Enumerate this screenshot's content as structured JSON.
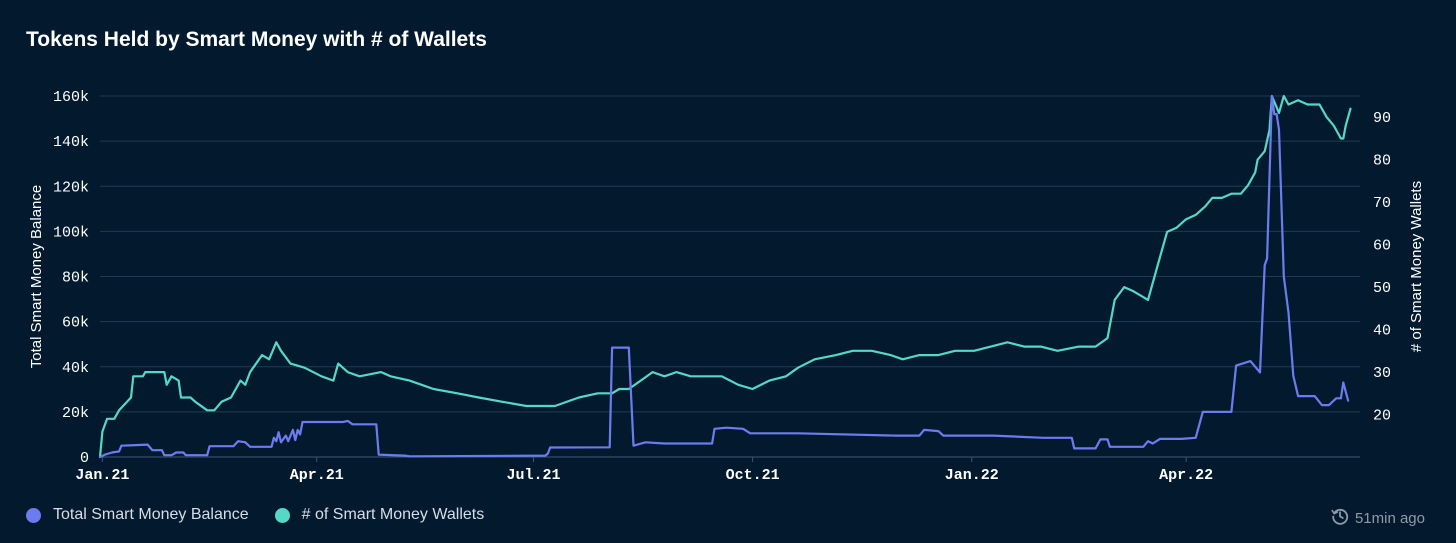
{
  "chart_data": {
    "type": "line",
    "title": "Tokens Held by Smart Money with # of Wallets",
    "y_left": {
      "label": "Total Smart Money Balance",
      "range": [
        0,
        160000
      ],
      "ticks": [
        0,
        20000,
        40000,
        60000,
        80000,
        100000,
        120000,
        140000,
        160000
      ],
      "tick_labels": [
        "0",
        "20k",
        "40k",
        "60k",
        "80k",
        "100k",
        "120k",
        "140k",
        "160k"
      ]
    },
    "y_right": {
      "label": "# of Smart Money Wallets",
      "range": [
        10,
        95
      ],
      "ticks": [
        20,
        30,
        40,
        50,
        60,
        70,
        80,
        90
      ],
      "tick_labels": [
        "20",
        "30",
        "40",
        "50",
        "60",
        "70",
        "80",
        "90"
      ]
    },
    "x_axis": {
      "start": "2020-12-31",
      "end": "2022-06-13",
      "ticks": [
        "2021-01-01",
        "2021-04-01",
        "2021-07-01",
        "2021-10-01",
        "2022-01-01",
        "2022-04-01"
      ],
      "tick_labels": [
        "Jan.21",
        "Apr.21",
        "Jul.21",
        "Oct.21",
        "Jan.22",
        "Apr.22"
      ]
    },
    "grid": "horizontal",
    "legend_position": "bottom-left",
    "series": [
      {
        "name": "Total Smart Money Balance",
        "axis": "left",
        "color": "#6c7cf0",
        "points": [
          [
            "2020-12-31",
            0
          ],
          [
            "2021-01-02",
            1000
          ],
          [
            "2021-01-05",
            2000
          ],
          [
            "2021-01-08",
            2500
          ],
          [
            "2021-01-09",
            5000
          ],
          [
            "2021-01-20",
            5500
          ],
          [
            "2021-01-22",
            3000
          ],
          [
            "2021-01-26",
            3000
          ],
          [
            "2021-01-27",
            800
          ],
          [
            "2021-01-30",
            800
          ],
          [
            "2021-02-01",
            2000
          ],
          [
            "2021-02-04",
            2000
          ],
          [
            "2021-02-05",
            800
          ],
          [
            "2021-02-14",
            800
          ],
          [
            "2021-02-15",
            4800
          ],
          [
            "2021-02-25",
            4800
          ],
          [
            "2021-02-27",
            7000
          ],
          [
            "2021-03-02",
            6500
          ],
          [
            "2021-03-04",
            4500
          ],
          [
            "2021-03-13",
            4500
          ],
          [
            "2021-03-14",
            8500
          ],
          [
            "2021-03-15",
            7000
          ],
          [
            "2021-03-16",
            11000
          ],
          [
            "2021-03-17",
            6500
          ],
          [
            "2021-03-19",
            9500
          ],
          [
            "2021-03-20",
            7000
          ],
          [
            "2021-03-22",
            12000
          ],
          [
            "2021-03-23",
            7500
          ],
          [
            "2021-03-24",
            12000
          ],
          [
            "2021-03-25",
            10000
          ],
          [
            "2021-03-26",
            15500
          ],
          [
            "2021-04-12",
            15500
          ],
          [
            "2021-04-14",
            16000
          ],
          [
            "2021-04-16",
            14500
          ],
          [
            "2021-04-26",
            14500
          ],
          [
            "2021-04-27",
            1000
          ],
          [
            "2021-05-08",
            600
          ],
          [
            "2021-05-10",
            300
          ],
          [
            "2021-07-06",
            600
          ],
          [
            "2021-07-07",
            1500
          ],
          [
            "2021-07-08",
            4200
          ],
          [
            "2021-08-02",
            4300
          ],
          [
            "2021-08-03",
            48500
          ],
          [
            "2021-08-10",
            48500
          ],
          [
            "2021-08-12",
            5000
          ],
          [
            "2021-08-17",
            6500
          ],
          [
            "2021-08-25",
            6000
          ],
          [
            "2021-09-14",
            6000
          ],
          [
            "2021-09-15",
            12500
          ],
          [
            "2021-09-20",
            13000
          ],
          [
            "2021-09-27",
            12500
          ],
          [
            "2021-09-30",
            10500
          ],
          [
            "2021-10-20",
            10500
          ],
          [
            "2021-11-30",
            9500
          ],
          [
            "2021-12-10",
            9500
          ],
          [
            "2021-12-12",
            12000
          ],
          [
            "2021-12-18",
            11500
          ],
          [
            "2021-12-20",
            9500
          ],
          [
            "2022-01-10",
            9500
          ],
          [
            "2022-01-31",
            8500
          ],
          [
            "2022-02-12",
            8500
          ],
          [
            "2022-02-13",
            3800
          ],
          [
            "2022-02-22",
            3800
          ],
          [
            "2022-02-24",
            7800
          ],
          [
            "2022-02-27",
            7800
          ],
          [
            "2022-02-28",
            4500
          ],
          [
            "2022-03-14",
            4500
          ],
          [
            "2022-03-16",
            7000
          ],
          [
            "2022-03-18",
            6000
          ],
          [
            "2022-03-21",
            8000
          ],
          [
            "2022-03-30",
            8000
          ],
          [
            "2022-04-05",
            8500
          ],
          [
            "2022-04-08",
            20000
          ],
          [
            "2022-04-20",
            20000
          ],
          [
            "2022-04-22",
            40500
          ],
          [
            "2022-04-28",
            42500
          ],
          [
            "2022-05-02",
            37500
          ],
          [
            "2022-05-04",
            85000
          ],
          [
            "2022-05-05",
            88000
          ],
          [
            "2022-05-07",
            160000
          ],
          [
            "2022-05-08",
            152000
          ],
          [
            "2022-05-09",
            152000
          ],
          [
            "2022-05-10",
            145000
          ],
          [
            "2022-05-12",
            80000
          ],
          [
            "2022-05-14",
            64000
          ],
          [
            "2022-05-16",
            36000
          ],
          [
            "2022-05-18",
            27000
          ],
          [
            "2022-05-25",
            27000
          ],
          [
            "2022-05-28",
            23000
          ],
          [
            "2022-05-31",
            23000
          ],
          [
            "2022-06-03",
            26000
          ],
          [
            "2022-06-05",
            26000
          ],
          [
            "2022-06-06",
            33000
          ],
          [
            "2022-06-08",
            25000
          ]
        ]
      },
      {
        "name": "# of Smart Money Wallets",
        "axis": "right",
        "color": "#56d8c6",
        "points": [
          [
            "2020-12-31",
            10
          ],
          [
            "2021-01-01",
            16
          ],
          [
            "2021-01-03",
            19
          ],
          [
            "2021-01-06",
            19
          ],
          [
            "2021-01-08",
            21
          ],
          [
            "2021-01-13",
            24
          ],
          [
            "2021-01-14",
            29
          ],
          [
            "2021-01-18",
            29
          ],
          [
            "2021-01-19",
            30
          ],
          [
            "2021-01-27",
            30
          ],
          [
            "2021-01-28",
            27
          ],
          [
            "2021-01-30",
            29
          ],
          [
            "2021-02-02",
            28
          ],
          [
            "2021-02-03",
            24
          ],
          [
            "2021-02-07",
            24
          ],
          [
            "2021-02-09",
            23
          ],
          [
            "2021-02-14",
            21
          ],
          [
            "2021-02-17",
            21
          ],
          [
            "2021-02-20",
            23
          ],
          [
            "2021-02-24",
            24
          ],
          [
            "2021-02-28",
            28
          ],
          [
            "2021-03-02",
            27
          ],
          [
            "2021-03-04",
            30
          ],
          [
            "2021-03-09",
            34
          ],
          [
            "2021-03-12",
            33
          ],
          [
            "2021-03-15",
            37
          ],
          [
            "2021-03-17",
            35
          ],
          [
            "2021-03-21",
            32
          ],
          [
            "2021-03-27",
            31
          ],
          [
            "2021-04-03",
            29
          ],
          [
            "2021-04-08",
            28
          ],
          [
            "2021-04-10",
            32
          ],
          [
            "2021-04-14",
            30
          ],
          [
            "2021-04-19",
            29
          ],
          [
            "2021-04-28",
            30
          ],
          [
            "2021-05-02",
            29
          ],
          [
            "2021-05-10",
            28
          ],
          [
            "2021-05-15",
            27
          ],
          [
            "2021-05-20",
            26
          ],
          [
            "2021-05-30",
            25
          ],
          [
            "2021-06-08",
            24
          ],
          [
            "2021-06-18",
            23
          ],
          [
            "2021-06-28",
            22
          ],
          [
            "2021-07-05",
            22
          ],
          [
            "2021-07-10",
            22
          ],
          [
            "2021-07-20",
            24
          ],
          [
            "2021-07-28",
            25
          ],
          [
            "2021-08-03",
            25
          ],
          [
            "2021-08-06",
            26
          ],
          [
            "2021-08-10",
            26
          ],
          [
            "2021-08-15",
            28
          ],
          [
            "2021-08-20",
            30
          ],
          [
            "2021-08-25",
            29
          ],
          [
            "2021-08-30",
            30
          ],
          [
            "2021-09-05",
            29
          ],
          [
            "2021-09-12",
            29
          ],
          [
            "2021-09-18",
            29
          ],
          [
            "2021-09-25",
            27
          ],
          [
            "2021-10-01",
            26
          ],
          [
            "2021-10-08",
            28
          ],
          [
            "2021-10-15",
            29
          ],
          [
            "2021-10-20",
            31
          ],
          [
            "2021-10-27",
            33
          ],
          [
            "2021-11-05",
            34
          ],
          [
            "2021-11-12",
            35
          ],
          [
            "2021-11-20",
            35
          ],
          [
            "2021-11-28",
            34
          ],
          [
            "2021-12-03",
            33
          ],
          [
            "2021-12-10",
            34
          ],
          [
            "2021-12-18",
            34
          ],
          [
            "2021-12-25",
            35
          ],
          [
            "2022-01-02",
            35
          ],
          [
            "2022-01-09",
            36
          ],
          [
            "2022-01-16",
            37
          ],
          [
            "2022-01-23",
            36
          ],
          [
            "2022-01-30",
            36
          ],
          [
            "2022-02-06",
            35
          ],
          [
            "2022-02-15",
            36
          ],
          [
            "2022-02-22",
            36
          ],
          [
            "2022-02-27",
            38
          ],
          [
            "2022-03-02",
            47
          ],
          [
            "2022-03-06",
            50
          ],
          [
            "2022-03-10",
            49
          ],
          [
            "2022-03-16",
            47
          ],
          [
            "2022-03-20",
            55
          ],
          [
            "2022-03-24",
            63
          ],
          [
            "2022-03-28",
            64
          ],
          [
            "2022-04-01",
            66
          ],
          [
            "2022-04-05",
            67
          ],
          [
            "2022-04-09",
            69
          ],
          [
            "2022-04-12",
            71
          ],
          [
            "2022-04-16",
            71
          ],
          [
            "2022-04-20",
            72
          ],
          [
            "2022-04-24",
            72
          ],
          [
            "2022-04-27",
            74
          ],
          [
            "2022-04-30",
            77
          ],
          [
            "2022-05-01",
            80
          ],
          [
            "2022-05-04",
            82
          ],
          [
            "2022-05-06",
            87
          ],
          [
            "2022-05-07",
            95
          ],
          [
            "2022-05-10",
            91
          ],
          [
            "2022-05-12",
            95
          ],
          [
            "2022-05-14",
            93
          ],
          [
            "2022-05-18",
            94
          ],
          [
            "2022-05-22",
            93
          ],
          [
            "2022-05-27",
            93
          ],
          [
            "2022-05-30",
            90
          ],
          [
            "2022-06-02",
            88
          ],
          [
            "2022-06-05",
            85
          ],
          [
            "2022-06-06",
            85
          ],
          [
            "2022-06-07",
            88
          ],
          [
            "2022-06-09",
            92
          ]
        ]
      }
    ]
  },
  "legend": [
    {
      "label": "Total Smart Money Balance",
      "color": "#6c7cf0"
    },
    {
      "label": "# of Smart Money Wallets",
      "color": "#56d8c6"
    }
  ],
  "footer": {
    "updated_label": "51min ago",
    "icon": "clock-history-icon"
  }
}
